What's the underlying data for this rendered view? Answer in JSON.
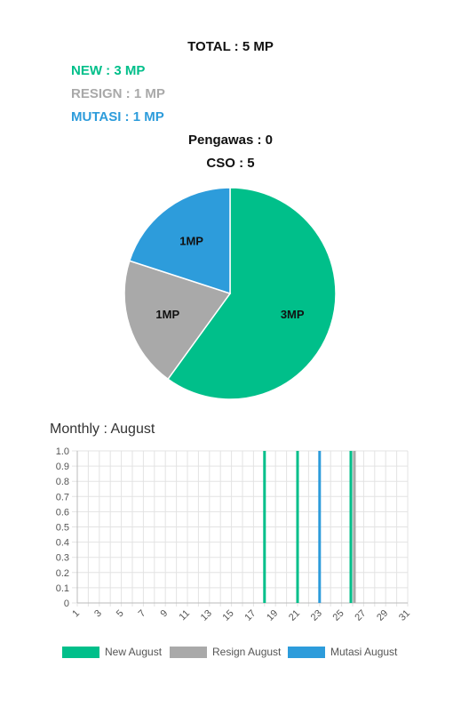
{
  "summary": {
    "total": "TOTAL : 5 MP",
    "new": "NEW : 3 MP",
    "resign": "RESIGN : 1 MP",
    "mutasi": "MUTASI : 1 MP",
    "pengawas": "Pengawas : 0",
    "cso": "CSO : 5"
  },
  "colors": {
    "new": "#00bf8a",
    "resign": "#a9a9a9",
    "mutasi": "#2d9cdb"
  },
  "chart_data": [
    {
      "type": "pie",
      "slices": [
        {
          "category": "new",
          "value": 3,
          "label": "3MP"
        },
        {
          "category": "resign",
          "value": 1,
          "label": "1MP"
        },
        {
          "category": "mutasi",
          "value": 1,
          "label": "1MP"
        }
      ]
    },
    {
      "type": "bar",
      "title": "Monthly : August",
      "x_tick_labels": [
        "1",
        "3",
        "5",
        "7",
        "9",
        "11",
        "13",
        "15",
        "17",
        "19",
        "21",
        "23",
        "25",
        "27",
        "29",
        "31"
      ],
      "xlim": [
        1,
        31
      ],
      "ylim": [
        0,
        1.0
      ],
      "y_tick_labels": [
        "0",
        "0.1",
        "0.2",
        "0.3",
        "0.4",
        "0.5",
        "0.6",
        "0.7",
        "0.8",
        "0.9",
        "1.0"
      ],
      "grid": true,
      "legend_position": "bottom",
      "series": [
        {
          "name": "New August",
          "points": [
            {
              "x": 18,
              "y": 1
            },
            {
              "x": 21,
              "y": 1
            },
            {
              "x": 26,
              "y": 1
            }
          ]
        },
        {
          "name": "Resign August",
          "points": [
            {
              "x": 26,
              "y": 1
            }
          ]
        },
        {
          "name": "Mutasi August",
          "points": [
            {
              "x": 23,
              "y": 1
            }
          ]
        }
      ]
    }
  ]
}
